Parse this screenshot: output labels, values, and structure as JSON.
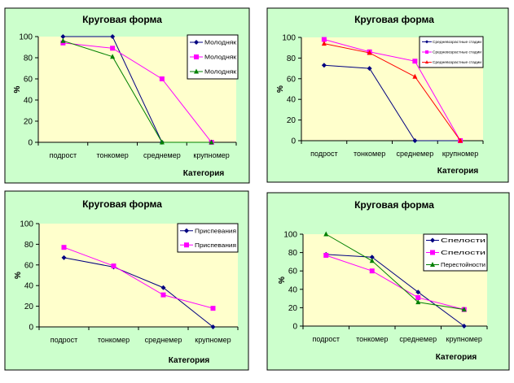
{
  "colors": {
    "panel": "#CCFFCC",
    "plot": "#FFFFCC",
    "navy": "#000080",
    "magenta": "#FF00FF",
    "green": "#008000",
    "red": "#FF0000"
  },
  "chart_data": [
    {
      "type": "line",
      "title": "Круговая форма",
      "xlabel": "Категория",
      "ylabel": "%",
      "ylim": [
        0,
        100
      ],
      "yticks": [
        0,
        20,
        40,
        60,
        80,
        100
      ],
      "categories": [
        "подрост",
        "тонкомер",
        "среднемер",
        "крупномер"
      ],
      "legend": "top-right",
      "series": [
        {
          "name": "Молодняк",
          "color": "#000080",
          "marker": "diamond",
          "values": [
            100,
            100,
            0,
            0
          ]
        },
        {
          "name": "Молодняк",
          "color": "#FF00FF",
          "marker": "square",
          "values": [
            94,
            89,
            60,
            0
          ]
        },
        {
          "name": "Молодняк",
          "color": "#008000",
          "marker": "triangle",
          "values": [
            96,
            81,
            0,
            0
          ]
        }
      ]
    },
    {
      "type": "line",
      "title": "Круговая форма",
      "xlabel": "Категория",
      "ylabel": "%",
      "ylim": [
        0,
        100
      ],
      "yticks": [
        0,
        20,
        40,
        60,
        80,
        100
      ],
      "categories": [
        "подрост",
        "тонкомер",
        "среднемер",
        "крупномер"
      ],
      "legend": "top-right",
      "series": [
        {
          "name": "Средневозрастные стадии",
          "color": "#000080",
          "marker": "diamond",
          "values": [
            73,
            70,
            0,
            0
          ]
        },
        {
          "name": "Средневозрастные стадии",
          "color": "#FF00FF",
          "marker": "square",
          "values": [
            98,
            86,
            77,
            0
          ]
        },
        {
          "name": "Средневозрастные стадии",
          "color": "#FF0000",
          "marker": "triangle",
          "values": [
            94,
            85,
            62,
            0
          ]
        }
      ]
    },
    {
      "type": "line",
      "title": "Круговая форма",
      "xlabel": "Категория",
      "ylabel": "%",
      "ylim": [
        0,
        100
      ],
      "yticks": [
        0,
        20,
        40,
        60,
        80,
        100
      ],
      "categories": [
        "подрост",
        "тонкомер",
        "среднемер",
        "крупномер"
      ],
      "legend": "top-right",
      "series": [
        {
          "name": "Приспевания",
          "color": "#000080",
          "marker": "diamond",
          "values": [
            67,
            58,
            38,
            0
          ]
        },
        {
          "name": "Приспевания",
          "color": "#FF00FF",
          "marker": "square",
          "values": [
            77,
            59,
            31,
            18
          ]
        }
      ]
    },
    {
      "type": "line",
      "title": "Круговая форма",
      "xlabel": "Категория",
      "ylabel": "%",
      "ylim": [
        0,
        100
      ],
      "yticks": [
        0,
        20,
        40,
        60,
        80,
        100
      ],
      "categories": [
        "подрост",
        "тонкомер",
        "среднемер",
        "крупномер"
      ],
      "legend": "top-right",
      "series": [
        {
          "name": "Спелости",
          "color": "#000080",
          "marker": "diamond",
          "values": [
            78,
            75,
            37,
            0
          ]
        },
        {
          "name": "Спелости",
          "color": "#FF00FF",
          "marker": "square",
          "values": [
            77,
            60,
            31,
            18
          ]
        },
        {
          "name": "Перестойности",
          "color": "#008000",
          "marker": "triangle",
          "values": [
            100,
            71,
            26,
            18
          ]
        }
      ]
    }
  ]
}
